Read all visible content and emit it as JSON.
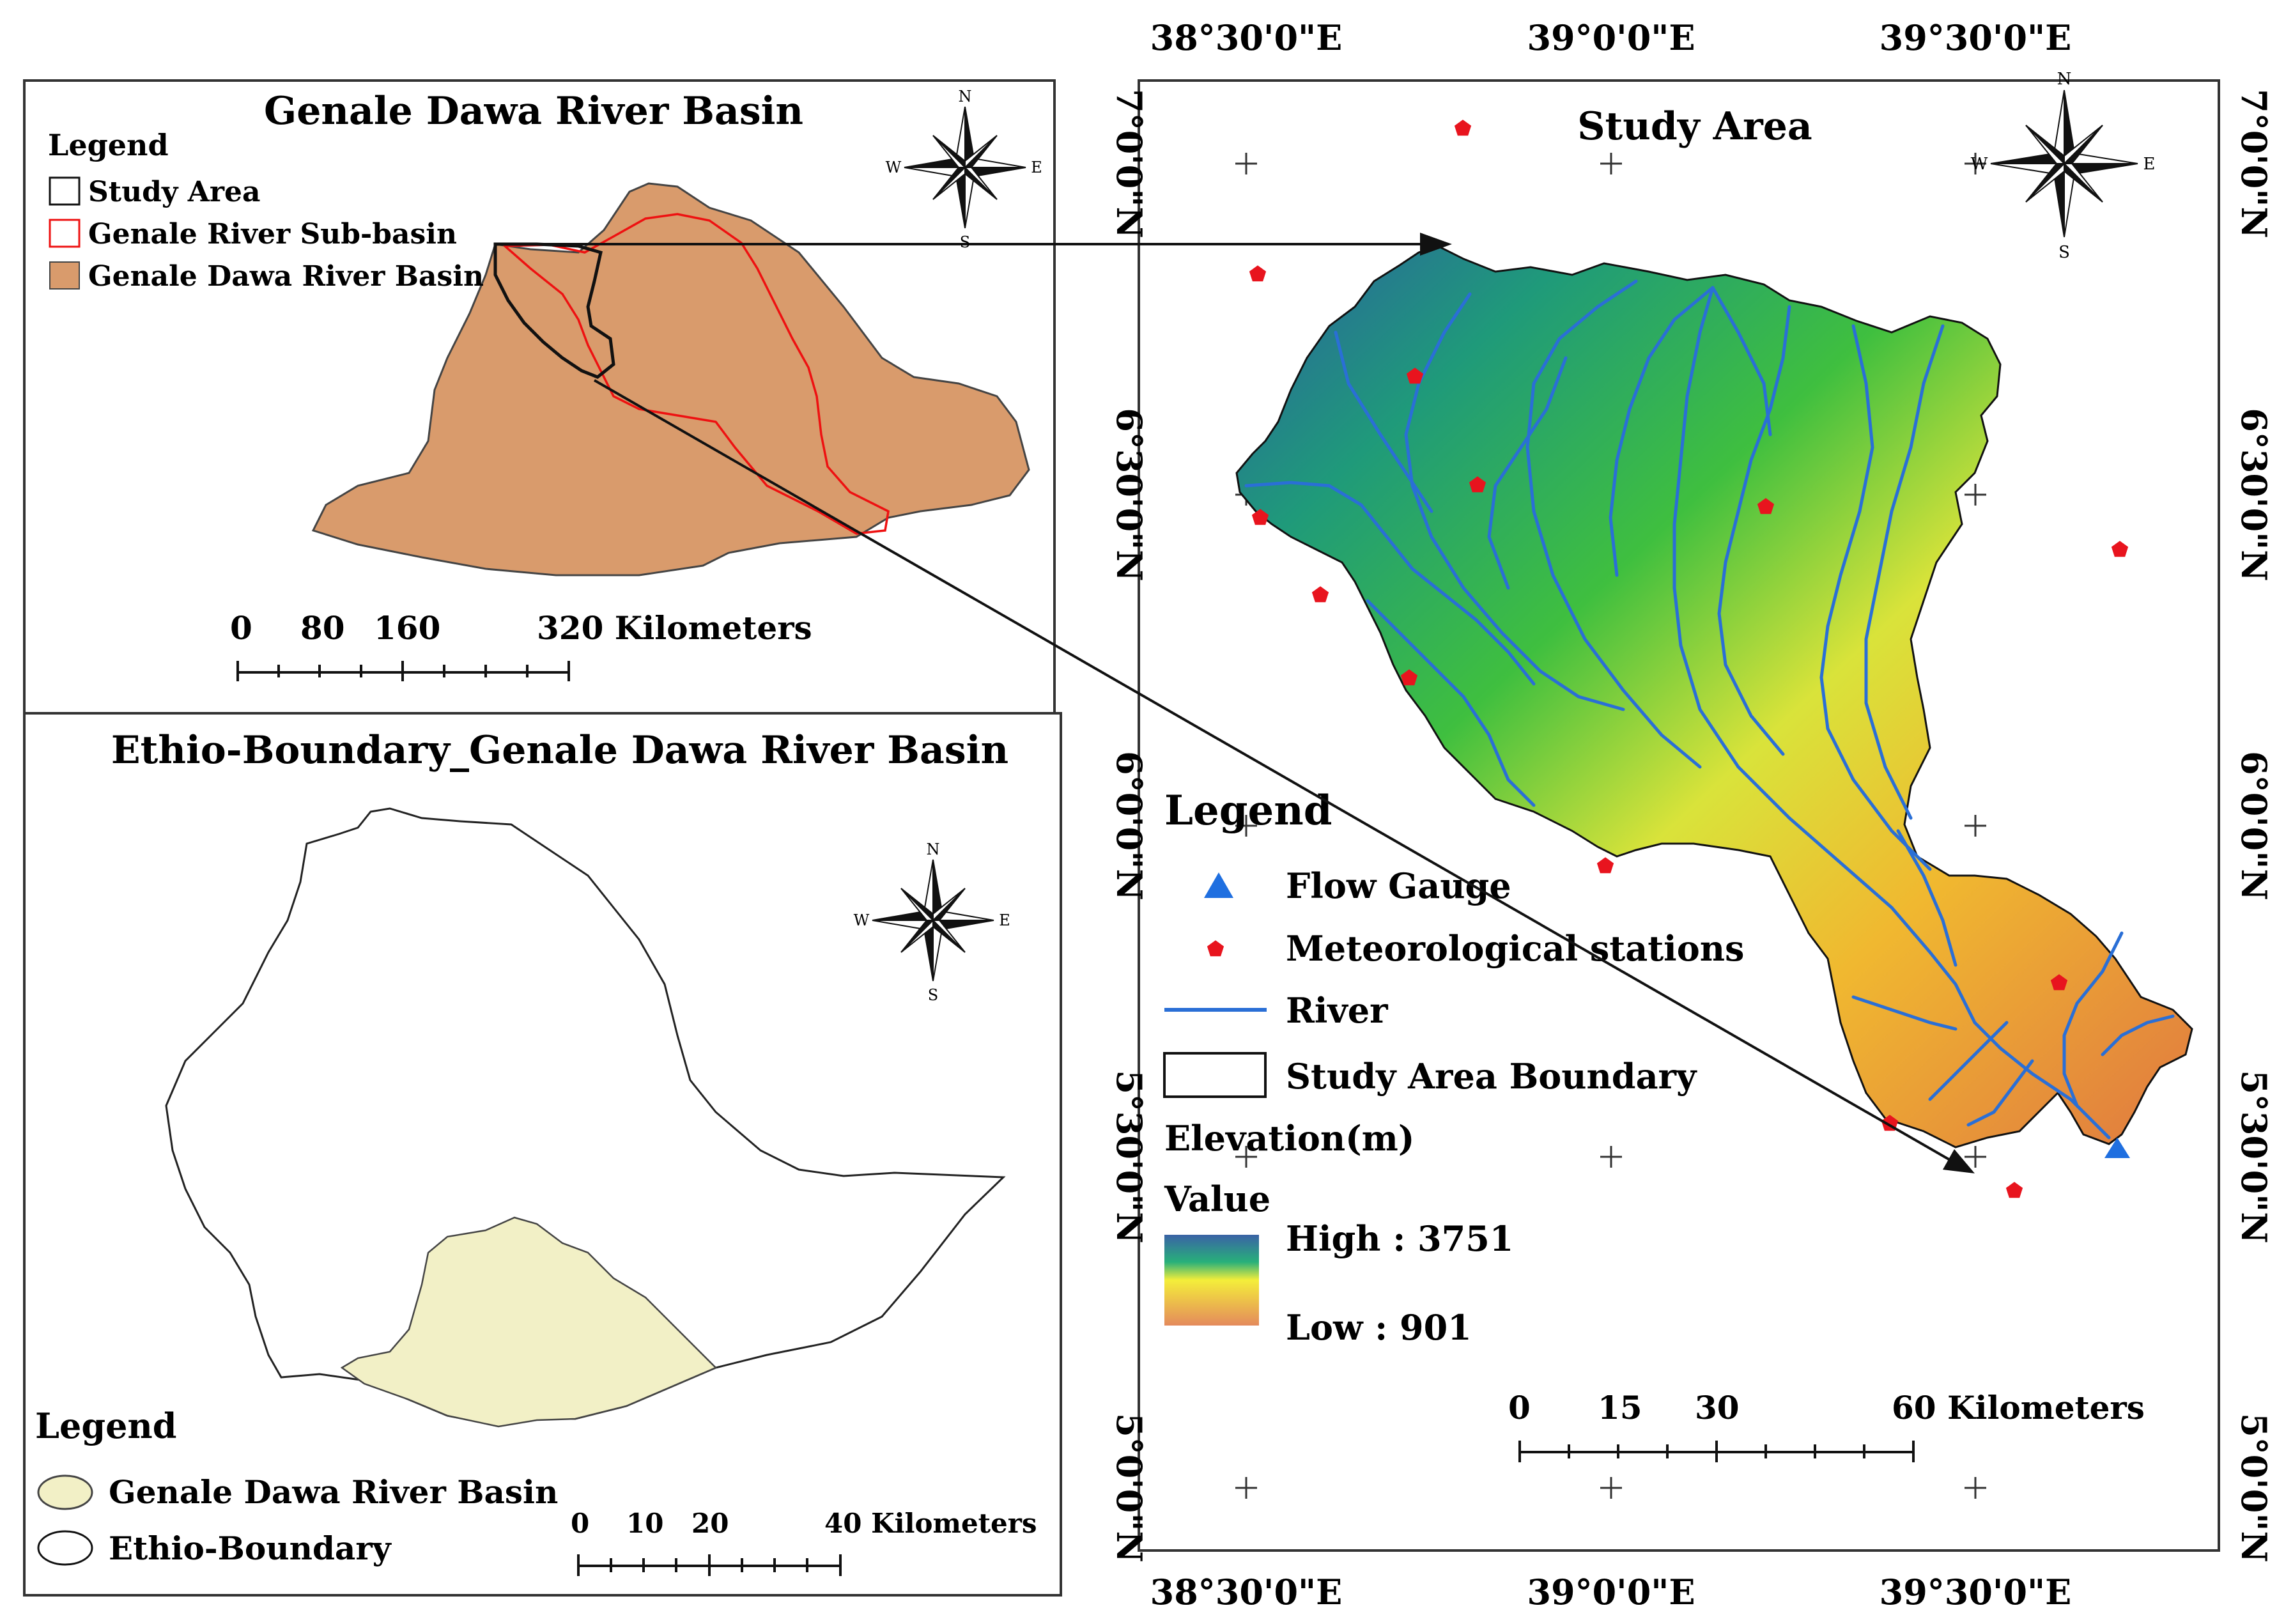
{
  "panel_basin": {
    "title": "Genale Dawa River Basin",
    "legend_title": "Legend",
    "legend_items": [
      {
        "label": "Study Area"
      },
      {
        "label": "Genale River Sub-basin"
      },
      {
        "label": "Genale Dawa River Basin"
      }
    ],
    "scale_labels": [
      "0",
      "80",
      "160",
      "320 Kilometers"
    ],
    "fill_color": "#d99b6c",
    "subbasin_color": "#ee1111"
  },
  "panel_ethiopia": {
    "title": "Ethio-Boundary_Genale Dawa River Basin",
    "legend_title": "Legend",
    "legend_items": [
      {
        "label": "Genale Dawa River Basin"
      },
      {
        "label": "Ethio-Boundary"
      }
    ],
    "scale_labels": [
      "0",
      "10",
      "20",
      "40 Kilometers"
    ],
    "fill_color": "#f2f0c6"
  },
  "panel_study": {
    "title": "Study Area",
    "legend_title": "Legend",
    "legend_items": [
      {
        "label": "Flow Gauge",
        "icon": "triangle-icon"
      },
      {
        "label": "Meteorological stations",
        "icon": "pentagon-icon"
      },
      {
        "label": "River",
        "icon": "line-icon"
      },
      {
        "label": "Study Area Boundary",
        "icon": "rectangle-icon"
      }
    ],
    "elevation_title": "Elevation(m)",
    "value_title": "Value",
    "elevation_high": "High : 3751",
    "elevation_low": "Low : 901",
    "scale_labels": [
      "0",
      "15",
      "30",
      "60 Kilometers"
    ],
    "river_color": "#2a6fd6",
    "station_color": "#e8141e",
    "gauge_color": "#1f6fe0"
  },
  "compass": {
    "n": "N",
    "s": "S",
    "e": "E",
    "w": "W"
  },
  "coords": {
    "top": [
      "38°30'0\"E",
      "39°0'0\"E",
      "39°30'0\"E"
    ],
    "bottom": [
      "38°30'0\"E",
      "39°0'0\"E",
      "39°30'0\"E"
    ],
    "left": [
      "7°0'0\"N",
      "6°30'0\"N",
      "6°0'0\"N",
      "5°30'0\"N",
      "5°0'0\"N"
    ],
    "right": [
      "7°0'0\"N",
      "6°30'0\"N",
      "6°0'0\"N",
      "5°30'0\"N",
      "5°0'0\"N"
    ]
  }
}
